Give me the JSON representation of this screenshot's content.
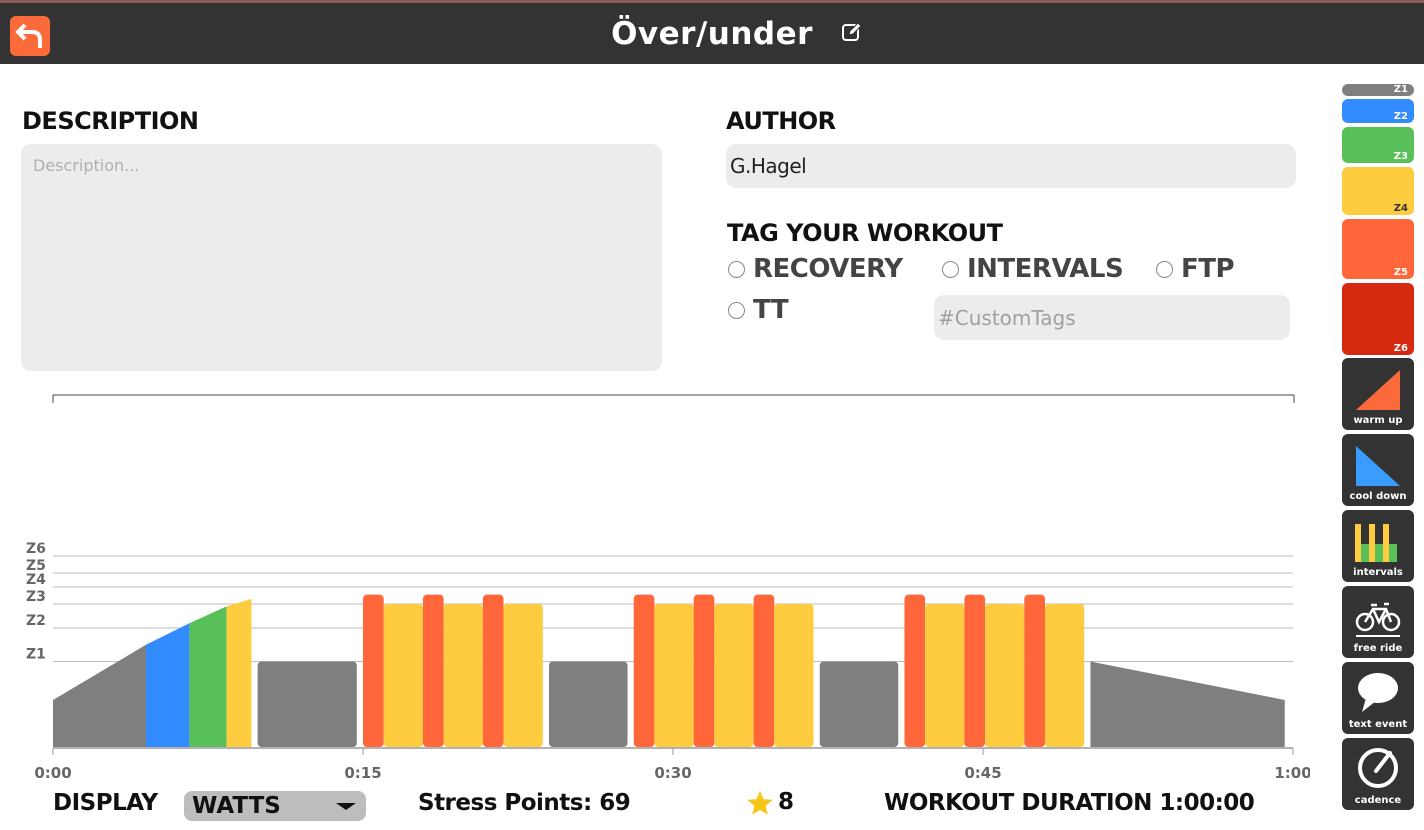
{
  "header": {
    "title": "Över/under",
    "back_icon": "back-arrow-icon",
    "edit_icon": "edit-icon"
  },
  "description": {
    "label": "DESCRIPTION",
    "value": "",
    "placeholder": "Description..."
  },
  "author": {
    "label": "AUTHOR",
    "value": "G.Hagel"
  },
  "tags": {
    "label": "TAG YOUR WORKOUT",
    "options": [
      {
        "label": "RECOVERY",
        "checked": false
      },
      {
        "label": "INTERVALS",
        "checked": false
      },
      {
        "label": "FTP",
        "checked": false
      },
      {
        "label": "TT",
        "checked": false
      }
    ],
    "custom_placeholder": "#CustomTags",
    "custom_value": ""
  },
  "chart_data": {
    "type": "bar",
    "x_unit": "time (h:mm)",
    "x_range": [
      0,
      60
    ],
    "x_ticks": [
      "0:00",
      "0:15",
      "0:30",
      "0:45",
      "1:00"
    ],
    "zone_labels": [
      "Z1",
      "Z2",
      "Z3",
      "Z4",
      "Z5",
      "Z6"
    ],
    "zone_lines": [
      1,
      2,
      3,
      4,
      5,
      6
    ],
    "colors": {
      "Z1": "#7f7f7f",
      "Z2": "#338cff",
      "Z3": "#59bf59",
      "Z4": "#ffcc3f",
      "Z5": "#ff6639",
      "Z6": "#d52a0f"
    },
    "blocks": [
      {
        "type": "ramp",
        "start": 0.0,
        "end": 4.5,
        "from": 0.55,
        "to": 1.5,
        "zone": "Z1"
      },
      {
        "type": "ramp",
        "start": 4.5,
        "end": 6.6,
        "from": 1.5,
        "to": 2.2,
        "zone": "Z2"
      },
      {
        "type": "ramp",
        "start": 6.6,
        "end": 8.4,
        "from": 2.2,
        "to": 2.9,
        "zone": "Z3"
      },
      {
        "type": "ramp",
        "start": 8.4,
        "end": 9.6,
        "from": 2.9,
        "to": 3.3,
        "zone": "Z4"
      },
      {
        "type": "steady",
        "start": 9.9,
        "end": 14.7,
        "level": 1.0,
        "zone": "Z1"
      },
      {
        "type": "steady",
        "start": 15.0,
        "end": 16.0,
        "level": 3.55,
        "zone": "Z5"
      },
      {
        "type": "steady",
        "start": 16.0,
        "end": 17.9,
        "level": 3.0,
        "zone": "Z4"
      },
      {
        "type": "steady",
        "start": 17.9,
        "end": 18.9,
        "level": 3.55,
        "zone": "Z5"
      },
      {
        "type": "steady",
        "start": 18.9,
        "end": 20.8,
        "level": 3.0,
        "zone": "Z4"
      },
      {
        "type": "steady",
        "start": 20.8,
        "end": 21.8,
        "level": 3.55,
        "zone": "Z5"
      },
      {
        "type": "steady",
        "start": 21.8,
        "end": 23.7,
        "level": 3.0,
        "zone": "Z4"
      },
      {
        "type": "steady",
        "start": 24.0,
        "end": 27.8,
        "level": 1.0,
        "zone": "Z1"
      },
      {
        "type": "steady",
        "start": 28.1,
        "end": 29.1,
        "level": 3.55,
        "zone": "Z5"
      },
      {
        "type": "steady",
        "start": 29.1,
        "end": 31.0,
        "level": 3.0,
        "zone": "Z4"
      },
      {
        "type": "steady",
        "start": 31.0,
        "end": 32.0,
        "level": 3.55,
        "zone": "Z5"
      },
      {
        "type": "steady",
        "start": 32.0,
        "end": 33.9,
        "level": 3.0,
        "zone": "Z4"
      },
      {
        "type": "steady",
        "start": 33.9,
        "end": 34.9,
        "level": 3.55,
        "zone": "Z5"
      },
      {
        "type": "steady",
        "start": 34.9,
        "end": 36.8,
        "level": 3.0,
        "zone": "Z4"
      },
      {
        "type": "steady",
        "start": 37.1,
        "end": 40.9,
        "level": 1.0,
        "zone": "Z1"
      },
      {
        "type": "steady",
        "start": 41.2,
        "end": 42.2,
        "level": 3.55,
        "zone": "Z5"
      },
      {
        "type": "steady",
        "start": 42.2,
        "end": 44.1,
        "level": 3.0,
        "zone": "Z4"
      },
      {
        "type": "steady",
        "start": 44.1,
        "end": 45.1,
        "level": 3.55,
        "zone": "Z5"
      },
      {
        "type": "steady",
        "start": 45.1,
        "end": 47.0,
        "level": 3.0,
        "zone": "Z4"
      },
      {
        "type": "steady",
        "start": 47.0,
        "end": 48.0,
        "level": 3.55,
        "zone": "Z5"
      },
      {
        "type": "steady",
        "start": 48.0,
        "end": 49.9,
        "level": 3.0,
        "zone": "Z4"
      },
      {
        "type": "ramp",
        "start": 50.2,
        "end": 59.6,
        "from": 1.0,
        "to": 0.55,
        "zone": "Z1"
      }
    ]
  },
  "footer": {
    "display_label": "DISPLAY",
    "display_value": "WATTS",
    "stress_points": "Stress Points: 69",
    "rating": "8",
    "duration": "WORKOUT DURATION 1:00:00"
  },
  "toolbar": {
    "zones": [
      {
        "label": "Z1",
        "color": "#7f7f7f"
      },
      {
        "label": "Z2",
        "color": "#338cff"
      },
      {
        "label": "Z3",
        "color": "#59bf59"
      },
      {
        "label": "Z4",
        "color": "#ffcc3f"
      },
      {
        "label": "Z5",
        "color": "#ff6639"
      },
      {
        "label": "Z6",
        "color": "#d52a0f"
      }
    ],
    "tools": [
      {
        "label": "warm up",
        "icon": "warm-up-icon"
      },
      {
        "label": "cool down",
        "icon": "cool-down-icon"
      },
      {
        "label": "intervals",
        "icon": "intervals-icon"
      },
      {
        "label": "free ride",
        "icon": "bicycle-icon"
      },
      {
        "label": "text event",
        "icon": "speech-bubble-icon"
      },
      {
        "label": "cadence",
        "icon": "cadence-gauge-icon"
      }
    ]
  }
}
